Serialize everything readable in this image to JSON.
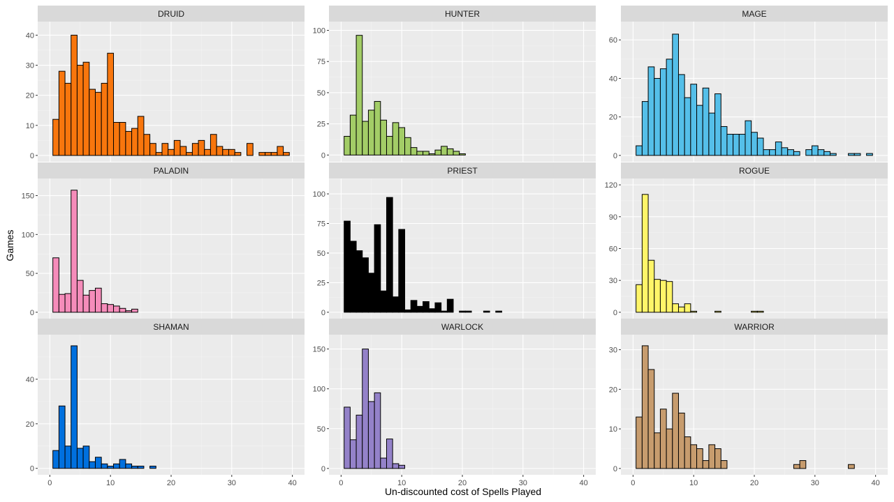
{
  "chart_data": {
    "type": "bar",
    "xlabel": "Un-discounted cost of Spells Played",
    "ylabel": "Games",
    "xlim": [
      -2,
      42
    ],
    "x_ticks": [
      0,
      10,
      20,
      30,
      40
    ],
    "bin_width": 1,
    "bin_centers": [
      1,
      2,
      3,
      4,
      5,
      6,
      7,
      8,
      9,
      10,
      11,
      12,
      13,
      14,
      15,
      16,
      17,
      18,
      19,
      20,
      21,
      22,
      23,
      24,
      25,
      26,
      27,
      28,
      29,
      30,
      31,
      32,
      33,
      34,
      35,
      36,
      37,
      38,
      39,
      40
    ],
    "grid": true,
    "legend": "none",
    "panels": [
      {
        "name": "DRUID",
        "color": "#f8760d",
        "ylim": [
          -2.1,
          44.5
        ],
        "y_ticks": [
          0,
          10,
          20,
          30,
          40
        ],
        "values": [
          12,
          28,
          24,
          40,
          30,
          31,
          22,
          21,
          24,
          34,
          11,
          11,
          8,
          9,
          13,
          7,
          4,
          1,
          4,
          2,
          5,
          3,
          1,
          4,
          5,
          2,
          7,
          3,
          2,
          2,
          1,
          0,
          4,
          0,
          1,
          1,
          1,
          3,
          1,
          0
        ]
      },
      {
        "name": "HUNTER",
        "color": "#a3cd67",
        "ylim": [
          -5.4,
          107
        ],
        "y_ticks": [
          0,
          25,
          50,
          75,
          100
        ],
        "values": [
          15,
          32,
          96,
          27,
          36,
          43,
          28,
          15,
          26,
          22,
          14,
          6,
          3,
          3,
          1,
          4,
          7,
          5,
          3,
          1,
          0,
          0,
          0,
          0,
          0,
          0,
          0,
          0,
          0,
          0,
          0,
          0,
          0,
          0,
          0,
          0,
          0,
          0,
          0,
          0
        ]
      },
      {
        "name": "MAGE",
        "color": "#55bfe9",
        "ylim": [
          -3.3,
          69.5
        ],
        "y_ticks": [
          0,
          20,
          40,
          60
        ],
        "values": [
          5,
          28,
          46,
          40,
          45,
          50,
          63,
          42,
          30,
          37,
          26,
          35,
          22,
          32,
          15,
          11,
          11,
          11,
          18,
          12,
          9,
          3,
          3,
          7,
          4,
          3,
          2,
          0,
          3,
          5,
          3,
          2,
          1,
          0,
          0,
          1,
          1,
          0,
          1,
          0
        ]
      },
      {
        "name": "PALADIN",
        "color": "#f58cba",
        "ylim": [
          -8.2,
          172
        ],
        "y_ticks": [
          0,
          50,
          100,
          150
        ],
        "values": [
          70,
          23,
          24,
          157,
          41,
          22,
          28,
          31,
          11,
          10,
          8,
          5,
          2,
          4,
          0,
          0,
          0,
          0,
          0,
          0,
          0,
          0,
          0,
          0,
          0,
          0,
          0,
          0,
          0,
          0,
          0,
          0,
          0,
          0,
          0,
          0,
          0,
          0,
          0,
          0
        ]
      },
      {
        "name": "PRIEST",
        "color": "#000000",
        "ylim": [
          -5.4,
          113
        ],
        "y_ticks": [
          0,
          25,
          50,
          75,
          100
        ],
        "values": [
          77,
          60,
          52,
          46,
          33,
          74,
          18,
          97,
          13,
          70,
          2,
          10,
          5,
          9,
          3,
          8,
          1,
          11,
          0,
          1,
          1,
          0,
          0,
          1,
          0,
          1,
          0,
          0,
          0,
          0,
          0,
          0,
          0,
          0,
          0,
          0,
          0,
          0,
          0,
          0
        ]
      },
      {
        "name": "ROGUE",
        "color": "#fff569",
        "ylim": [
          -6.0,
          126
        ],
        "y_ticks": [
          0,
          30,
          60,
          90,
          120
        ],
        "values": [
          26,
          111,
          49,
          31,
          30,
          29,
          8,
          5,
          8,
          1,
          0,
          0,
          0,
          1,
          0,
          0,
          0,
          0,
          0,
          1,
          1,
          0,
          0,
          0,
          0,
          0,
          0,
          0,
          0,
          0,
          0,
          0,
          0,
          0,
          0,
          0,
          0,
          0,
          0,
          0
        ]
      },
      {
        "name": "SHAMAN",
        "color": "#0070de",
        "ylim": [
          -2.9,
          60
        ],
        "y_ticks": [
          0,
          20,
          40
        ],
        "values": [
          8,
          28,
          10,
          55,
          9,
          10,
          3,
          5,
          2,
          1,
          2,
          4,
          2,
          1,
          1,
          0,
          1,
          0,
          0,
          0,
          0,
          0,
          0,
          0,
          0,
          0,
          0,
          0,
          0,
          0,
          0,
          0,
          0,
          0,
          0,
          0,
          0,
          0,
          0,
          0
        ]
      },
      {
        "name": "WARLOCK",
        "color": "#9482c9",
        "ylim": [
          -8.0,
          168
        ],
        "y_ticks": [
          0,
          50,
          100,
          150
        ],
        "values": [
          77,
          36,
          67,
          150,
          84,
          95,
          13,
          37,
          6,
          4,
          0,
          0,
          0,
          0,
          0,
          0,
          0,
          0,
          0,
          0,
          0,
          0,
          0,
          0,
          0,
          0,
          0,
          0,
          0,
          0,
          0,
          0,
          0,
          0,
          0,
          0,
          0,
          0,
          0,
          0
        ]
      },
      {
        "name": "WARRIOR",
        "color": "#c79c6e",
        "ylim": [
          -1.6,
          33.8
        ],
        "y_ticks": [
          0,
          10,
          20,
          30
        ],
        "values": [
          13,
          31,
          25,
          9,
          15,
          10,
          19,
          14,
          8,
          6,
          5,
          2,
          6,
          5,
          2,
          0,
          0,
          0,
          0,
          0,
          0,
          0,
          0,
          0,
          0,
          0,
          1,
          2,
          0,
          0,
          0,
          0,
          0,
          0,
          0,
          1,
          0,
          0,
          0,
          0
        ]
      }
    ]
  }
}
